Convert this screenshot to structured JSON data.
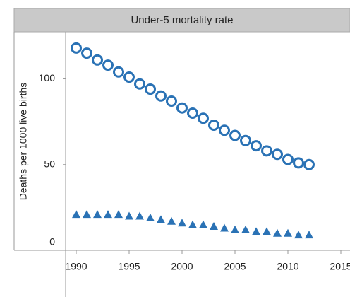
{
  "chart_data": {
    "type": "scatter",
    "title": "Under-5 mortality rate",
    "y_label": "Deaths per 1000 live births",
    "x": [
      1990,
      1991,
      1992,
      1993,
      1994,
      1995,
      1996,
      1997,
      1998,
      1999,
      2000,
      2001,
      2002,
      2003,
      2004,
      2005,
      2006,
      2007,
      2008,
      2009,
      2010,
      2011,
      2012
    ],
    "series": [
      {
        "marker": "circle",
        "color": "#2a72b5",
        "values": [
          118,
          115,
          111,
          108,
          104,
          101,
          97,
          94,
          90,
          87,
          83,
          80,
          77,
          73,
          70,
          67,
          64,
          61,
          58,
          56,
          53,
          51,
          50
        ]
      },
      {
        "marker": "triangle",
        "color": "#2a72b5",
        "values": [
          21,
          21,
          21,
          21,
          21,
          20,
          20,
          19,
          18,
          17,
          16,
          15,
          15,
          14,
          13,
          12,
          12,
          11,
          11,
          10,
          10,
          9,
          9
        ]
      }
    ],
    "xlim": [
      1989,
      2016
    ],
    "xticks": [
      1990,
      1995,
      2000,
      2005,
      2010,
      2015
    ],
    "ylim": [
      0,
      127
    ],
    "yticks": [
      0,
      50,
      100
    ]
  }
}
